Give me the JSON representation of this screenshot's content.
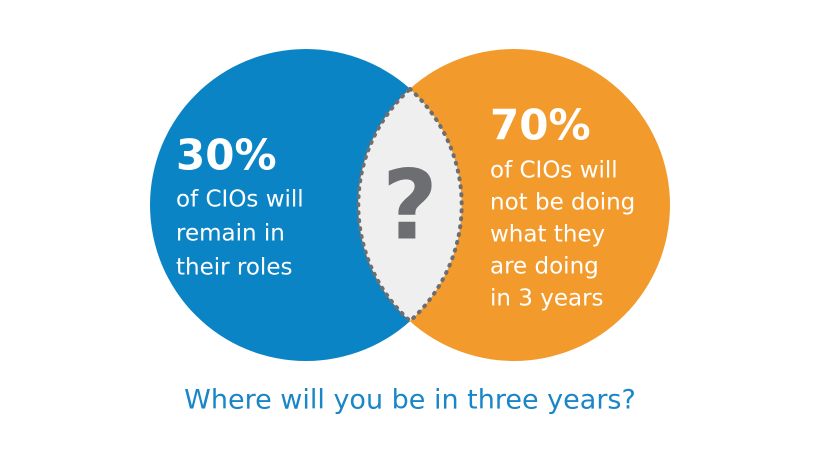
{
  "left": {
    "figure": "30%",
    "lines": [
      "of CIOs will",
      "remain in",
      "their roles"
    ]
  },
  "right": {
    "figure": "70%",
    "lines": [
      "of CIOs will",
      "not be doing",
      "what they",
      "are doing",
      "in 3 years"
    ]
  },
  "overlap": {
    "label": "?"
  },
  "caption": "Where will you be in three years?"
}
